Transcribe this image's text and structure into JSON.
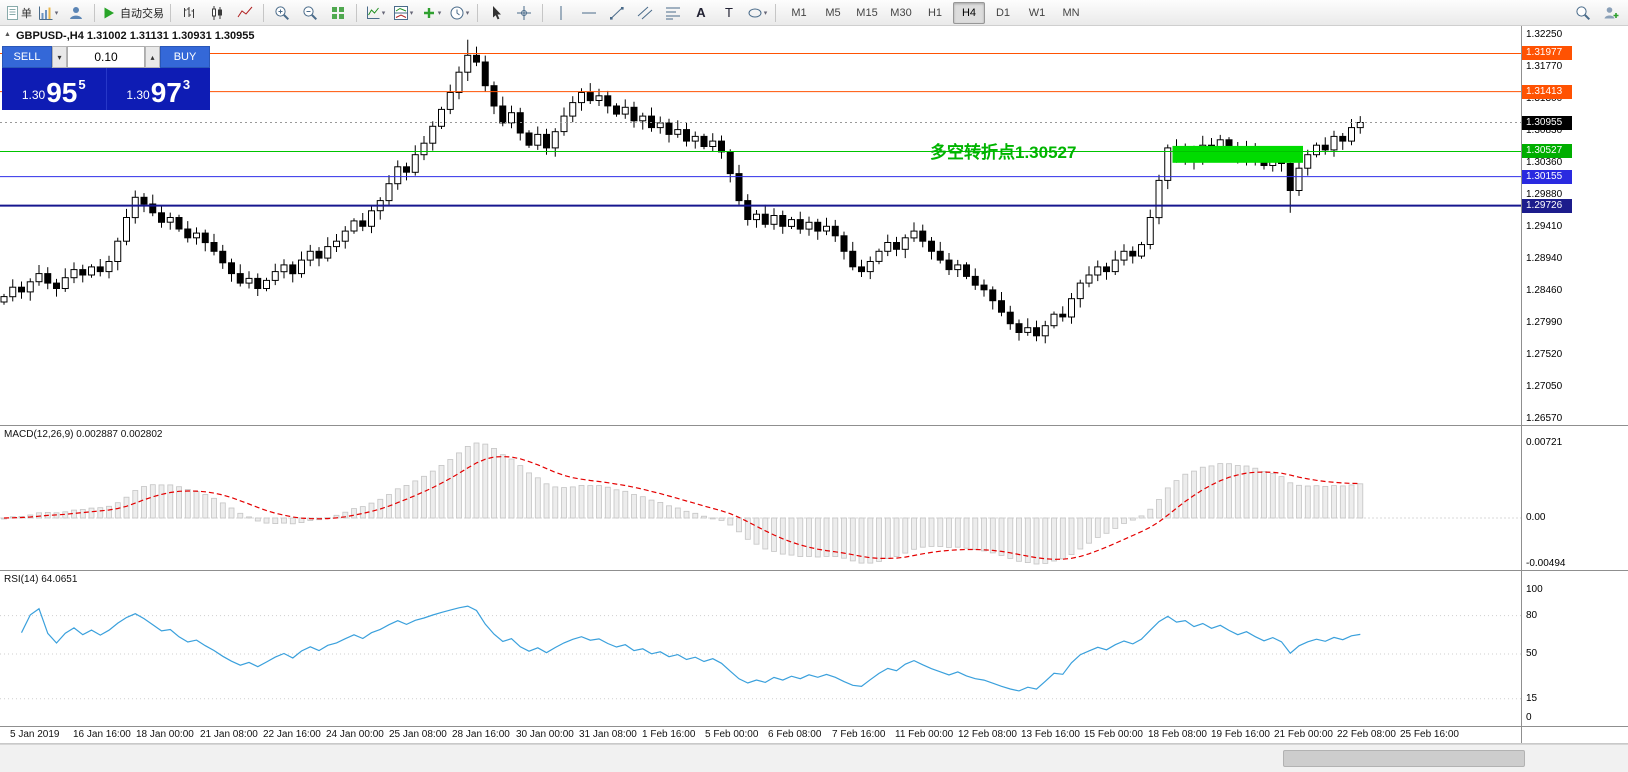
{
  "toolbar": {
    "new_order_label": "单",
    "autotrading_label": "自动交易",
    "text_a_label": "A",
    "text_t_label": "T",
    "timeframes": [
      "M1",
      "M5",
      "M15",
      "M30",
      "H1",
      "H4",
      "D1",
      "W1",
      "MN"
    ],
    "active_timeframe": "H4"
  },
  "chart": {
    "header": "GBPUSD-,H4  1.31002 1.31131 1.30931 1.30955",
    "collapse_arrow": "▲",
    "annotation_text": "多空转折点1.30527"
  },
  "trade_panel": {
    "sell_label": "SELL",
    "buy_label": "BUY",
    "volume": "0.10",
    "spin_down": "▾",
    "spin_up": "▴",
    "sell_price_small": "1.30",
    "sell_price_big": "95",
    "sell_price_sup": "5",
    "buy_price_small": "1.30",
    "buy_price_big": "97",
    "buy_price_sup": "3"
  },
  "price_axis": {
    "ticks": [
      "1.32250",
      "1.31770",
      "1.31300",
      "1.30830",
      "1.30360",
      "1.29880",
      "1.29410",
      "1.28940",
      "1.28460",
      "1.27990",
      "1.27520",
      "1.27050",
      "1.26570"
    ],
    "badges": [
      {
        "price": 1.31977,
        "label": "1.31977",
        "color": "#ff5202"
      },
      {
        "price": 1.31413,
        "label": "1.31413",
        "color": "#ff5202"
      },
      {
        "price": 1.30955,
        "label": "1.30955",
        "color": "#000000"
      },
      {
        "price": 1.30527,
        "label": "1.30527",
        "color": "#00ae00"
      },
      {
        "price": 1.30155,
        "label": "1.30155",
        "color": "#2a2ae0"
      },
      {
        "price": 1.29726,
        "label": "1.29726",
        "color": "#1c1c8c"
      }
    ]
  },
  "macd_panel": {
    "label": "MACD(12,26,9) 0.002887 0.002802",
    "axis": [
      "0.00721",
      "0.00",
      "-0.00494"
    ],
    "fast": 12,
    "slow": 26,
    "signal": 9
  },
  "rsi_panel": {
    "label": "RSI(14) 64.0651",
    "axis": [
      "100",
      "80",
      "50",
      "15",
      "0"
    ],
    "axis_values": [
      100,
      80,
      50,
      15,
      0
    ],
    "levels": [
      80,
      50,
      15
    ],
    "period": 14
  },
  "time_axis": {
    "labels": [
      "5 Jan 2019",
      "16 Jan 16:00",
      "18 Jan 00:00",
      "21 Jan 08:00",
      "22 Jan 16:00",
      "24 Jan 00:00",
      "25 Jan 08:00",
      "28 Jan 16:00",
      "30 Jan 00:00",
      "31 Jan 08:00",
      "1 Feb 16:00",
      "5 Feb 00:00",
      "6 Feb 08:00",
      "7 Feb 16:00",
      "11 Feb 00:00",
      "12 Feb 08:00",
      "13 Feb 16:00",
      "15 Feb 00:00",
      "18 Feb 08:00",
      "19 Feb 16:00",
      "21 Feb 00:00",
      "22 Feb 08:00",
      "25 Feb 16:00"
    ]
  },
  "colors": {
    "trade_row_bg": "#0e1cb4",
    "trade_btn_bg": "#3468d8",
    "annotation_green": "#00b400",
    "macd_signal": "#e40000",
    "macd_hist_fill": "#ededed",
    "macd_hist_stroke": "#c4c4c4",
    "rsi_line": "#3aa0dc",
    "candle_up": "#ffffff",
    "candle_down": "#000000",
    "candle_stroke": "#000000"
  },
  "chart_data": {
    "type": "candlestick",
    "symbol": "GBPUSD-",
    "timeframe": "H4",
    "ohlc_display": "1.31002 1.31131 1.30931 1.30955",
    "price_max": 1.3225,
    "price_min": 1.2657,
    "current_price": 1.30955,
    "first_open": 1.283,
    "closes": [
      1.2838,
      1.2852,
      1.2845,
      1.286,
      1.2872,
      1.2858,
      1.285,
      1.2866,
      1.2878,
      1.287,
      1.2882,
      1.2875,
      1.289,
      1.292,
      1.2955,
      1.2985,
      1.2975,
      1.2962,
      1.2948,
      1.2955,
      1.2938,
      1.2925,
      1.2932,
      1.2918,
      1.2905,
      1.2888,
      1.2872,
      1.2858,
      1.2865,
      1.285,
      1.2862,
      1.2875,
      1.2885,
      1.2872,
      1.2892,
      1.2905,
      1.2895,
      1.2912,
      1.292,
      1.2935,
      1.295,
      1.2942,
      1.2965,
      1.298,
      1.3005,
      1.303,
      1.3022,
      1.3048,
      1.3065,
      1.309,
      1.3115,
      1.314,
      1.317,
      1.3195,
      1.3185,
      1.315,
      1.312,
      1.3095,
      1.311,
      1.308,
      1.3062,
      1.3078,
      1.3058,
      1.3082,
      1.3105,
      1.3125,
      1.314,
      1.3128,
      1.3135,
      1.312,
      1.3108,
      1.3118,
      1.3098,
      1.3105,
      1.3088,
      1.3095,
      1.3078,
      1.3085,
      1.3068,
      1.3075,
      1.306,
      1.3068,
      1.3052,
      1.302,
      1.298,
      1.2952,
      1.296,
      1.2945,
      1.2958,
      1.2942,
      1.2952,
      1.2938,
      1.2948,
      1.2935,
      1.2942,
      1.2928,
      1.2905,
      1.2882,
      1.2875,
      1.289,
      1.2905,
      1.2918,
      1.2908,
      1.2925,
      1.2935,
      1.292,
      1.2905,
      1.2892,
      1.2878,
      1.2885,
      1.2868,
      1.2855,
      1.2848,
      1.2832,
      1.2815,
      1.2798,
      1.2785,
      1.2792,
      1.278,
      1.2795,
      1.2812,
      1.2808,
      1.2835,
      1.2858,
      1.287,
      1.2882,
      1.2875,
      1.2892,
      1.2905,
      1.2898,
      1.2915,
      1.2955,
      1.301,
      1.3058,
      1.3042,
      1.3055,
      1.3038,
      1.3062,
      1.3048,
      1.307,
      1.3055,
      1.3042,
      1.306,
      1.3045,
      1.3032,
      1.3048,
      1.3035,
      1.2995,
      1.3028,
      1.3048,
      1.3062,
      1.3055,
      1.3075,
      1.3068,
      1.3088,
      1.30955
    ],
    "wick_overrides": [
      {
        "i": 15,
        "high": 1.2995
      },
      {
        "i": 53,
        "high": 1.3218
      },
      {
        "i": 83,
        "high": 1.3056
      },
      {
        "i": 131,
        "low": 1.2908
      },
      {
        "i": 147,
        "low": 1.2962
      }
    ],
    "levels": [
      {
        "price": 1.31977,
        "color": "#ff5202",
        "width": 1
      },
      {
        "price": 1.31413,
        "color": "#ff5202",
        "width": 1
      },
      {
        "price": 1.30527,
        "color": "#00c400",
        "width": 1
      },
      {
        "price": 1.30155,
        "color": "#2f2fe8",
        "width": 1
      },
      {
        "price": 1.29726,
        "color": "#17178f",
        "width": 2
      }
    ],
    "rectangle": {
      "i1": 134,
      "i2": 148,
      "top": 1.3061,
      "bottom": 1.3036,
      "color": "#00dc00"
    }
  }
}
